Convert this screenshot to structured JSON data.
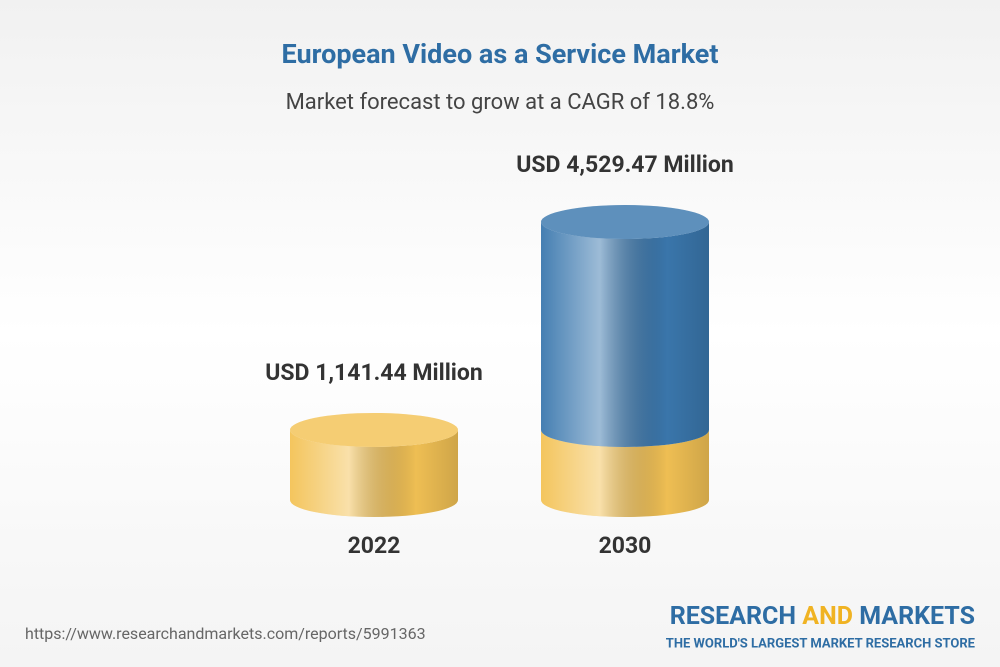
{
  "chart_data": {
    "type": "cylinder",
    "title": "European Video as a Service Market",
    "subtitle": "Market forecast to grow at a CAGR of 18.8%",
    "categories": [
      "2022",
      "2030"
    ],
    "values": [
      1141.44,
      4529.47
    ],
    "value_labels": [
      "USD 1,141.44 Million",
      "USD 4,529.47 Million"
    ],
    "colors": [
      "#f3c255",
      "#3b78ae"
    ]
  },
  "footer": {
    "source": "https://www.researchandmarkets.com/reports/5991363",
    "logo": [
      "RESEARCH",
      "AND",
      "MARKETS"
    ],
    "tagline": "THE WORLD'S LARGEST MARKET RESEARCH STORE"
  }
}
